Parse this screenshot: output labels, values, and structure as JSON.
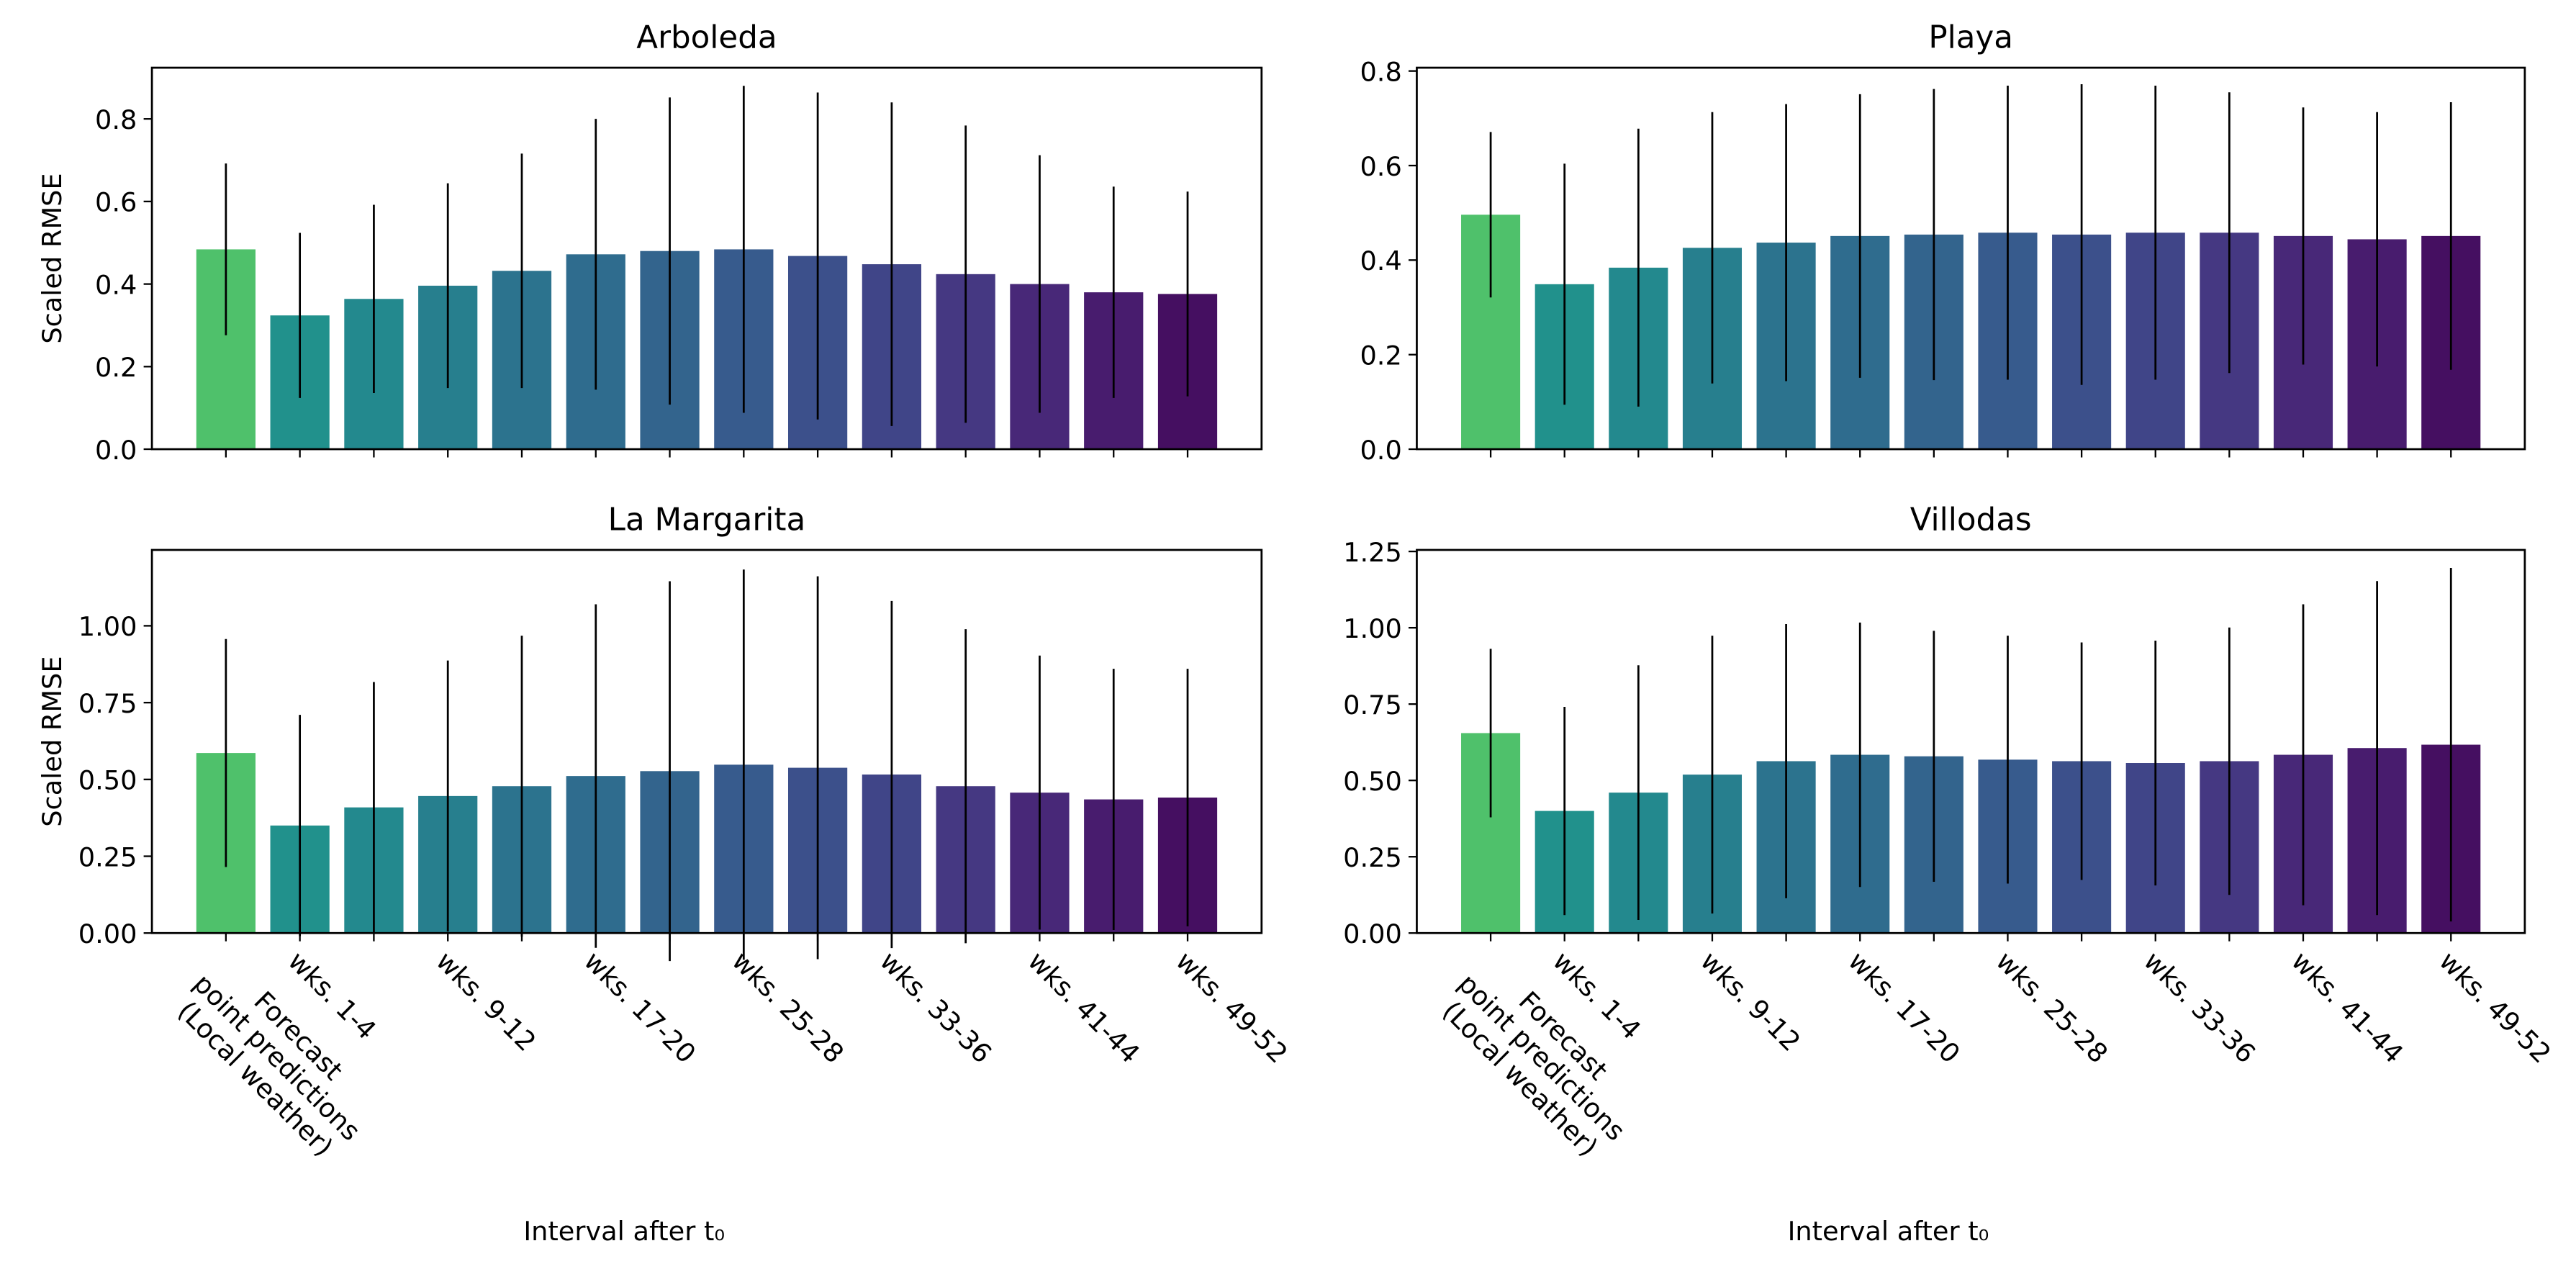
{
  "chart_data": [
    {
      "type": "bar",
      "title": "Arboleda",
      "y_label": "Scaled RMSE",
      "values": [
        0.484,
        0.324,
        0.364,
        0.396,
        0.432,
        0.472,
        0.48,
        0.484,
        0.468,
        0.448,
        0.424,
        0.4,
        0.38,
        0.376
      ],
      "errors": [
        0.208,
        0.2,
        0.228,
        0.248,
        0.284,
        0.328,
        0.372,
        0.396,
        0.396,
        0.392,
        0.36,
        0.312,
        0.256,
        0.248
      ],
      "colors": [
        "#4fc16b",
        "#21918c",
        "#23898e",
        "#277f8e",
        "#2c738e",
        "#2f6c8e",
        "#33648d",
        "#375b8d",
        "#3c508b",
        "#404588",
        "#453882",
        "#482878",
        "#481c6e",
        "#450f61"
      ],
      "ylim": [
        0,
        0.924
      ],
      "yticks": [
        {
          "value": 0,
          "label": "0.0"
        },
        {
          "value": 0.2,
          "label": "0.2"
        },
        {
          "value": 0.4,
          "label": "0.4"
        },
        {
          "value": 0.6,
          "label": "0.6"
        },
        {
          "value": 0.8,
          "label": "0.8"
        }
      ]
    },
    {
      "type": "bar",
      "title": "Playa",
      "values": [
        0.496,
        0.349,
        0.384,
        0.426,
        0.437,
        0.451,
        0.454,
        0.458,
        0.454,
        0.458,
        0.458,
        0.451,
        0.444,
        0.451
      ],
      "errors": [
        0.175,
        0.255,
        0.294,
        0.287,
        0.293,
        0.3,
        0.308,
        0.311,
        0.318,
        0.311,
        0.297,
        0.272,
        0.269,
        0.283
      ],
      "colors": [
        "#4fc16b",
        "#21918c",
        "#23898e",
        "#277f8e",
        "#2c738e",
        "#2f6c8e",
        "#33648d",
        "#375b8d",
        "#3c508b",
        "#404588",
        "#453882",
        "#482878",
        "#481c6e",
        "#450f61"
      ],
      "ylim": [
        0,
        0.807
      ],
      "yticks": [
        {
          "value": 0,
          "label": "0.0"
        },
        {
          "value": 0.2,
          "label": "0.2"
        },
        {
          "value": 0.4,
          "label": "0.4"
        },
        {
          "value": 0.6,
          "label": "0.6"
        },
        {
          "value": 0.8,
          "label": "0.8"
        }
      ]
    },
    {
      "type": "bar",
      "title": "La Margarita",
      "y_label": "Scaled RMSE",
      "x_label": "Interval after t₀",
      "categories": [
        "Forecast\npoint predictions\n(Local weather)",
        "wks. 1-4",
        null,
        "wks. 9-12",
        null,
        "wks. 17-20",
        null,
        "wks. 25-28",
        null,
        "wks. 33-36",
        null,
        "wks. 41-44",
        null,
        "wks. 49-52"
      ],
      "values": [
        0.586,
        0.35,
        0.409,
        0.446,
        0.478,
        0.511,
        0.527,
        0.548,
        0.538,
        0.516,
        0.478,
        0.457,
        0.435,
        0.441
      ],
      "errors": [
        0.371,
        0.36,
        0.408,
        0.441,
        0.49,
        0.559,
        0.618,
        0.635,
        0.623,
        0.565,
        0.511,
        0.446,
        0.425,
        0.419
      ],
      "colors": [
        "#4fc16b",
        "#21918c",
        "#23898e",
        "#277f8e",
        "#2c738e",
        "#2f6c8e",
        "#33648d",
        "#375b8d",
        "#3c508b",
        "#404588",
        "#453882",
        "#482878",
        "#481c6e",
        "#450f61"
      ],
      "ylim": [
        0,
        1.247
      ],
      "yticks": [
        {
          "value": 0,
          "label": "0.00"
        },
        {
          "value": 0.25,
          "label": "0.25"
        },
        {
          "value": 0.5,
          "label": "0.50"
        },
        {
          "value": 0.75,
          "label": "0.75"
        },
        {
          "value": 1,
          "label": "1.00"
        }
      ]
    },
    {
      "type": "bar",
      "title": "Villodas",
      "x_label": "Interval after t₀",
      "categories": [
        "Forecast\npoint predictions\n(Local weather)",
        "wks. 1-4",
        null,
        "wks. 9-12",
        null,
        "wks. 17-20",
        null,
        "wks. 25-28",
        null,
        "wks. 33-36",
        null,
        "wks. 41-44",
        null,
        "wks. 49-52"
      ],
      "values": [
        0.655,
        0.4,
        0.46,
        0.519,
        0.563,
        0.584,
        0.579,
        0.568,
        0.563,
        0.557,
        0.563,
        0.584,
        0.606,
        0.617
      ],
      "errors": [
        0.276,
        0.341,
        0.417,
        0.455,
        0.449,
        0.433,
        0.411,
        0.406,
        0.389,
        0.401,
        0.438,
        0.493,
        0.547,
        0.579
      ],
      "colors": [
        "#4fc16b",
        "#21918c",
        "#23898e",
        "#277f8e",
        "#2c738e",
        "#2f6c8e",
        "#33648d",
        "#375b8d",
        "#3c508b",
        "#404588",
        "#453882",
        "#482878",
        "#481c6e",
        "#450f61"
      ],
      "ylim": [
        0,
        1.255
      ],
      "yticks": [
        {
          "value": 0,
          "label": "0.00"
        },
        {
          "value": 0.25,
          "label": "0.25"
        },
        {
          "value": 0.5,
          "label": "0.50"
        },
        {
          "value": 0.75,
          "label": "0.75"
        },
        {
          "value": 1,
          "label": "1.00"
        },
        {
          "value": 1.25,
          "label": "1.25"
        }
      ]
    }
  ]
}
